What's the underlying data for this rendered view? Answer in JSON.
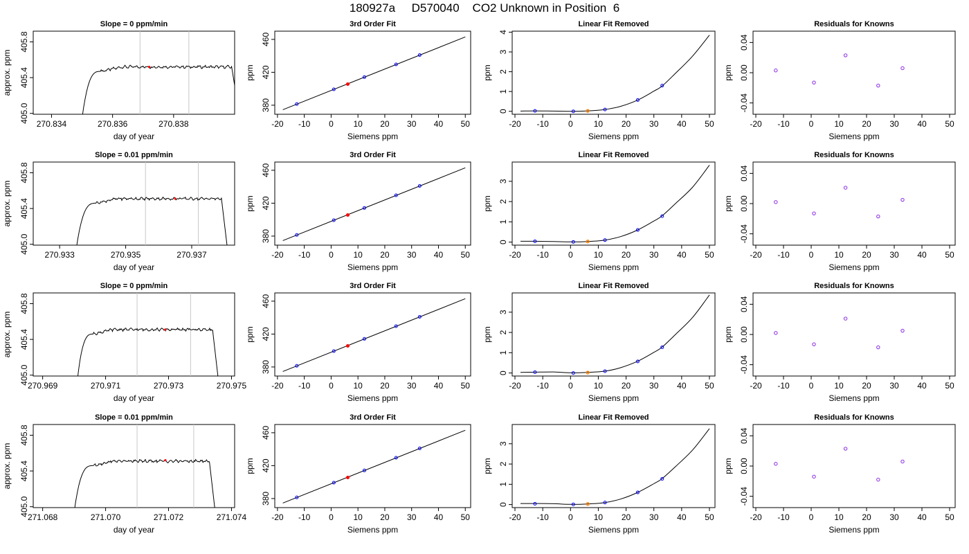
{
  "page_title": "180927a     D570040    CO2 Unknown in Position  6",
  "colors": {
    "trace": "#000000",
    "window_lines": "#c8c8c8",
    "current_point": "#ff0000",
    "known_points": "#0000ff",
    "unknown_point": "#ff8000",
    "residual_points": "#8a2be2"
  },
  "chart_data": [
    {
      "type": "line",
      "row": 1,
      "col": 1,
      "title": "Slope =  0  ppm/min",
      "xlabel": "day of year",
      "ylabel": "approx. ppm",
      "xlim": [
        270.8334,
        270.84
      ],
      "ylim": [
        404.99,
        405.92
      ],
      "xticks": [
        270.834,
        270.836,
        270.838
      ],
      "xtick_labels": [
        "270.834",
        "270.836",
        "270.838"
      ],
      "yticks": [
        405.0,
        405.4,
        405.8
      ],
      "ytick_labels": [
        "405.0",
        "405.4",
        "405.8"
      ],
      "window_lines": [
        270.8369,
        270.8385
      ],
      "current_point": [
        270.8372,
        405.52
      ],
      "trace": {
        "x_start": 270.835,
        "x_plateau": 270.8356,
        "x_fall": 270.8399,
        "x_end": 270.8402,
        "level": 405.52,
        "noise": 0.015
      }
    },
    {
      "type": "line",
      "row": 1,
      "col": 2,
      "title": "3rd Order Fit",
      "xlabel": "Siemens ppm",
      "ylabel": "ppm",
      "xlim": [
        -21,
        52
      ],
      "ylim": [
        369,
        470
      ],
      "xticks": [
        -20,
        -10,
        0,
        10,
        20,
        30,
        40,
        50
      ],
      "yticks": [
        380,
        420,
        460
      ],
      "fit_line": {
        "x": [
          -18,
          50
        ],
        "y": [
          374.5,
          463.0
        ]
      },
      "known_points": {
        "x": [
          -12.8,
          1.0,
          12.4,
          24.2,
          33.0
        ],
        "y": [
          381.4,
          399.3,
          414.2,
          429.6,
          441.0
        ]
      },
      "unknown_point": {
        "x": 6.2,
        "y": 405.6
      }
    },
    {
      "type": "line",
      "row": 1,
      "col": 3,
      "title": "Linear Fit Removed",
      "xlabel": "Siemens ppm",
      "ylabel": "ppm",
      "xlim": [
        -21,
        52
      ],
      "ylim": [
        -0.15,
        4.05
      ],
      "xticks": [
        -20,
        -10,
        0,
        10,
        20,
        30,
        40,
        50
      ],
      "yticks": [
        0,
        1,
        2,
        3,
        4
      ],
      "curve": {
        "x": [
          -18.0,
          -12.8,
          -6.0,
          0.0,
          6.2,
          12.4,
          18.0,
          24.2,
          30.0,
          33.0,
          38.0,
          44.0,
          50.0
        ],
        "y": [
          0.01,
          0.02,
          0.01,
          0.0,
          0.02,
          0.09,
          0.25,
          0.57,
          1.02,
          1.28,
          1.95,
          2.8,
          3.85
        ]
      },
      "known_points": {
        "x": [
          -12.8,
          1.0,
          12.4,
          24.2,
          33.0
        ],
        "y": [
          0.02,
          0.0,
          0.09,
          0.57,
          1.3
        ]
      },
      "unknown_point": {
        "x": 6.2,
        "y": 0.02
      }
    },
    {
      "type": "scatter",
      "row": 1,
      "col": 4,
      "title": "Residuals for Knowns",
      "xlabel": "Siemens ppm",
      "ylabel": "ppm",
      "xlim": [
        -21,
        52
      ],
      "ylim": [
        -0.055,
        0.055
      ],
      "xticks": [
        -20,
        -10,
        0,
        10,
        20,
        30,
        40,
        50
      ],
      "yticks": [
        -0.04,
        0.0,
        0.04
      ],
      "ytick_labels": [
        "-0.04",
        "0.00",
        "0.04"
      ],
      "points": {
        "x": [
          -12.8,
          1.0,
          12.4,
          24.2,
          33.0
        ],
        "y": [
          0.003,
          -0.013,
          0.023,
          -0.017,
          0.006
        ]
      }
    },
    {
      "type": "line",
      "row": 2,
      "col": 1,
      "title": "Slope =  0.01  ppm/min",
      "xlabel": "day of year",
      "ylabel": "approx. ppm",
      "xlim": [
        270.9322,
        270.9383
      ],
      "ylim": [
        404.99,
        405.92
      ],
      "xticks": [
        270.933,
        270.935,
        270.937
      ],
      "xtick_labels": [
        "270.933",
        "270.935",
        "270.937"
      ],
      "yticks": [
        405.0,
        405.4,
        405.8
      ],
      "ytick_labels": [
        "405.0",
        "405.4",
        "405.8"
      ],
      "window_lines": [
        270.9356,
        270.9372
      ],
      "current_point": [
        270.9365,
        405.51
      ],
      "trace": {
        "x_start": 270.9335,
        "x_plateau": 270.9341,
        "x_fall": 270.9379,
        "x_end": 270.9381,
        "level": 405.51,
        "noise": 0.015
      }
    },
    {
      "type": "line",
      "row": 2,
      "col": 2,
      "title": "3rd Order Fit",
      "xlabel": "Siemens ppm",
      "ylabel": "ppm",
      "xlim": [
        -21,
        52
      ],
      "ylim": [
        369,
        470
      ],
      "xticks": [
        -20,
        -10,
        0,
        10,
        20,
        30,
        40,
        50
      ],
      "yticks": [
        380,
        420,
        460
      ],
      "fit_line": {
        "x": [
          -18,
          50
        ],
        "y": [
          374.5,
          463.0
        ]
      },
      "known_points": {
        "x": [
          -12.8,
          1.0,
          12.4,
          24.2,
          33.0
        ],
        "y": [
          381.4,
          399.3,
          414.2,
          429.6,
          441.0
        ]
      },
      "unknown_point": {
        "x": 6.2,
        "y": 405.6
      }
    },
    {
      "type": "line",
      "row": 2,
      "col": 3,
      "title": "Linear Fit Removed",
      "xlabel": "Siemens ppm",
      "ylabel": "ppm",
      "xlim": [
        -21,
        52
      ],
      "ylim": [
        -0.15,
        3.95
      ],
      "xticks": [
        -20,
        -10,
        0,
        10,
        20,
        30,
        40,
        50
      ],
      "yticks": [
        0,
        1,
        2,
        3
      ],
      "curve": {
        "x": [
          -18.0,
          -12.8,
          -6.0,
          0.0,
          6.2,
          12.4,
          18.0,
          24.2,
          30.0,
          33.0,
          38.0,
          44.0,
          50.0
        ],
        "y": [
          0.04,
          0.04,
          0.03,
          0.01,
          0.03,
          0.1,
          0.27,
          0.6,
          1.04,
          1.3,
          1.93,
          2.72,
          3.8
        ]
      },
      "known_points": {
        "x": [
          -12.8,
          1.0,
          12.4,
          24.2,
          33.0
        ],
        "y": [
          0.04,
          0.01,
          0.1,
          0.6,
          1.28
        ]
      },
      "unknown_point": {
        "x": 6.2,
        "y": 0.03
      }
    },
    {
      "type": "scatter",
      "row": 2,
      "col": 4,
      "title": "Residuals for Knowns",
      "xlabel": "Siemens ppm",
      "ylabel": "ppm",
      "xlim": [
        -21,
        52
      ],
      "ylim": [
        -0.055,
        0.055
      ],
      "xticks": [
        -20,
        -10,
        0,
        10,
        20,
        30,
        40,
        50
      ],
      "yticks": [
        -0.04,
        0.0,
        0.04
      ],
      "ytick_labels": [
        "-0.04",
        "0.00",
        "0.04"
      ],
      "points": {
        "x": [
          -12.8,
          1.0,
          12.4,
          24.2,
          33.0
        ],
        "y": [
          0.002,
          -0.013,
          0.021,
          -0.017,
          0.005
        ]
      }
    },
    {
      "type": "line",
      "row": 3,
      "col": 1,
      "title": "Slope =  0  ppm/min",
      "xlabel": "day of year",
      "ylabel": "approx. ppm",
      "xlim": [
        270.9687,
        270.9751
      ],
      "ylim": [
        404.99,
        405.92
      ],
      "xticks": [
        270.969,
        270.971,
        270.973,
        270.975
      ],
      "xtick_labels": [
        "270.969",
        "270.971",
        "270.973",
        "270.975"
      ],
      "yticks": [
        405.0,
        405.4,
        405.8
      ],
      "ytick_labels": [
        "405.0",
        "405.4",
        "405.8"
      ],
      "window_lines": [
        270.972,
        270.9737
      ],
      "current_point": [
        270.9729,
        405.51
      ],
      "trace": {
        "x_start": 270.9701,
        "x_plateau": 270.9706,
        "x_fall": 270.9744,
        "x_end": 270.9746,
        "level": 405.51,
        "noise": 0.015
      }
    },
    {
      "type": "line",
      "row": 3,
      "col": 2,
      "title": "3rd Order Fit",
      "xlabel": "Siemens ppm",
      "ylabel": "ppm",
      "xlim": [
        -21,
        52
      ],
      "ylim": [
        369,
        470
      ],
      "xticks": [
        -20,
        -10,
        0,
        10,
        20,
        30,
        40,
        50
      ],
      "yticks": [
        380,
        420,
        460
      ],
      "fit_line": {
        "x": [
          -18,
          50
        ],
        "y": [
          374.5,
          463.0
        ]
      },
      "known_points": {
        "x": [
          -12.8,
          1.0,
          12.4,
          24.2,
          33.0
        ],
        "y": [
          381.4,
          399.3,
          414.2,
          429.6,
          441.0
        ]
      },
      "unknown_point": {
        "x": 6.2,
        "y": 405.6
      }
    },
    {
      "type": "line",
      "row": 3,
      "col": 3,
      "title": "Linear Fit Removed",
      "xlabel": "Siemens ppm",
      "ylabel": "ppm",
      "xlim": [
        -21,
        52
      ],
      "ylim": [
        -0.15,
        3.95
      ],
      "xticks": [
        -20,
        -10,
        0,
        10,
        20,
        30,
        40,
        50
      ],
      "yticks": [
        0,
        1,
        2,
        3
      ],
      "curve": {
        "x": [
          -18.0,
          -12.8,
          -6.0,
          0.0,
          6.2,
          12.4,
          18.0,
          24.2,
          30.0,
          33.0,
          38.0,
          44.0,
          50.0
        ],
        "y": [
          0.03,
          0.04,
          0.05,
          0.01,
          0.03,
          0.09,
          0.26,
          0.58,
          1.02,
          1.28,
          1.93,
          2.75,
          3.85
        ]
      },
      "known_points": {
        "x": [
          -12.8,
          1.0,
          12.4,
          24.2,
          33.0
        ],
        "y": [
          0.04,
          0.0,
          0.09,
          0.57,
          1.27
        ]
      },
      "unknown_point": {
        "x": 6.2,
        "y": 0.02
      }
    },
    {
      "type": "scatter",
      "row": 3,
      "col": 4,
      "title": "Residuals for Knowns",
      "xlabel": "Siemens ppm",
      "ylabel": "ppm",
      "xlim": [
        -21,
        52
      ],
      "ylim": [
        -0.055,
        0.055
      ],
      "xticks": [
        -20,
        -10,
        0,
        10,
        20,
        30,
        40,
        50
      ],
      "yticks": [
        -0.04,
        0.0,
        0.04
      ],
      "ytick_labels": [
        "-0.04",
        "0.00",
        "0.04"
      ],
      "points": {
        "x": [
          -12.8,
          1.0,
          12.4,
          24.2,
          33.0
        ],
        "y": [
          0.002,
          -0.013,
          0.021,
          -0.017,
          0.005
        ]
      }
    },
    {
      "type": "line",
      "row": 4,
      "col": 1,
      "title": "Slope =  0.01  ppm/min",
      "xlabel": "day of year",
      "ylabel": "approx. ppm",
      "xlim": [
        271.0677,
        271.0741
      ],
      "ylim": [
        404.99,
        405.92
      ],
      "xticks": [
        271.068,
        271.07,
        271.072,
        271.074
      ],
      "xtick_labels": [
        "271.068",
        "271.070",
        "271.072",
        "271.074"
      ],
      "yticks": [
        405.0,
        405.4,
        405.8
      ],
      "ytick_labels": [
        "405.0",
        "405.4",
        "405.8"
      ],
      "window_lines": [
        271.071,
        271.0728
      ],
      "current_point": [
        271.0719,
        405.52
      ],
      "trace": {
        "x_start": 271.069,
        "x_plateau": 271.0696,
        "x_fall": 271.0733,
        "x_end": 271.0735,
        "level": 405.51,
        "noise": 0.015
      }
    },
    {
      "type": "line",
      "row": 4,
      "col": 2,
      "title": "3rd Order Fit",
      "xlabel": "Siemens ppm",
      "ylabel": "ppm",
      "xlim": [
        -21,
        52
      ],
      "ylim": [
        369,
        470
      ],
      "xticks": [
        -20,
        -10,
        0,
        10,
        20,
        30,
        40,
        50
      ],
      "yticks": [
        380,
        420,
        460
      ],
      "fit_line": {
        "x": [
          -18,
          50
        ],
        "y": [
          374.5,
          463.0
        ]
      },
      "known_points": {
        "x": [
          -12.8,
          1.0,
          12.4,
          24.2,
          33.0
        ],
        "y": [
          381.4,
          399.3,
          414.2,
          429.6,
          441.0
        ]
      },
      "unknown_point": {
        "x": 6.2,
        "y": 405.6
      }
    },
    {
      "type": "line",
      "row": 4,
      "col": 3,
      "title": "Linear Fit Removed",
      "xlabel": "Siemens ppm",
      "ylabel": "ppm",
      "xlim": [
        -21,
        52
      ],
      "ylim": [
        -0.15,
        3.95
      ],
      "xticks": [
        -20,
        -10,
        0,
        10,
        20,
        30,
        40,
        50
      ],
      "yticks": [
        0,
        1,
        2,
        3
      ],
      "curve": {
        "x": [
          -18.0,
          -12.8,
          -6.0,
          0.0,
          6.2,
          12.4,
          18.0,
          24.2,
          30.0,
          33.0,
          38.0,
          44.0,
          50.0
        ],
        "y": [
          0.05,
          0.05,
          0.04,
          0.01,
          0.03,
          0.1,
          0.27,
          0.6,
          1.03,
          1.28,
          1.9,
          2.7,
          3.75
        ]
      },
      "known_points": {
        "x": [
          -12.8,
          1.0,
          12.4,
          24.2,
          33.0
        ],
        "y": [
          0.04,
          0.01,
          0.1,
          0.6,
          1.27
        ]
      },
      "unknown_point": {
        "x": 6.2,
        "y": 0.03
      }
    },
    {
      "type": "scatter",
      "row": 4,
      "col": 4,
      "title": "Residuals for Knowns",
      "xlabel": "Siemens ppm",
      "ylabel": "ppm",
      "xlim": [
        -21,
        52
      ],
      "ylim": [
        -0.055,
        0.055
      ],
      "xticks": [
        -20,
        -10,
        0,
        10,
        20,
        30,
        40,
        50
      ],
      "yticks": [
        -0.04,
        0.0,
        0.04
      ],
      "ytick_labels": [
        "-0.04",
        "0.00",
        "0.04"
      ],
      "points": {
        "x": [
          -12.8,
          1.0,
          12.4,
          24.2,
          33.0
        ],
        "y": [
          0.003,
          -0.014,
          0.023,
          -0.018,
          0.006
        ]
      }
    }
  ]
}
